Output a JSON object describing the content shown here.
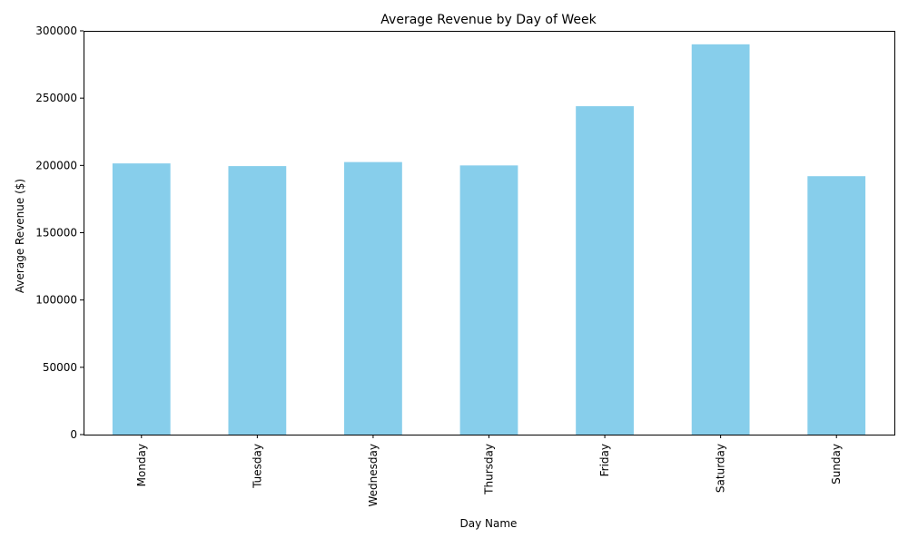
{
  "chart_data": {
    "type": "bar",
    "title": "Average Revenue by Day of Week",
    "xlabel": "Day Name",
    "ylabel": "Average Revenue ($)",
    "categories": [
      "Monday",
      "Tuesday",
      "Wednesday",
      "Thursday",
      "Friday",
      "Saturday",
      "Sunday"
    ],
    "values": [
      201500,
      199500,
      202500,
      200000,
      244000,
      290000,
      192000
    ],
    "ylim": [
      0,
      300000
    ],
    "yticks": [
      "0",
      "50000",
      "100000",
      "150000",
      "200000",
      "250000",
      "300000"
    ],
    "grid": false,
    "legend": "none",
    "bar_color": "#87ceeb"
  }
}
